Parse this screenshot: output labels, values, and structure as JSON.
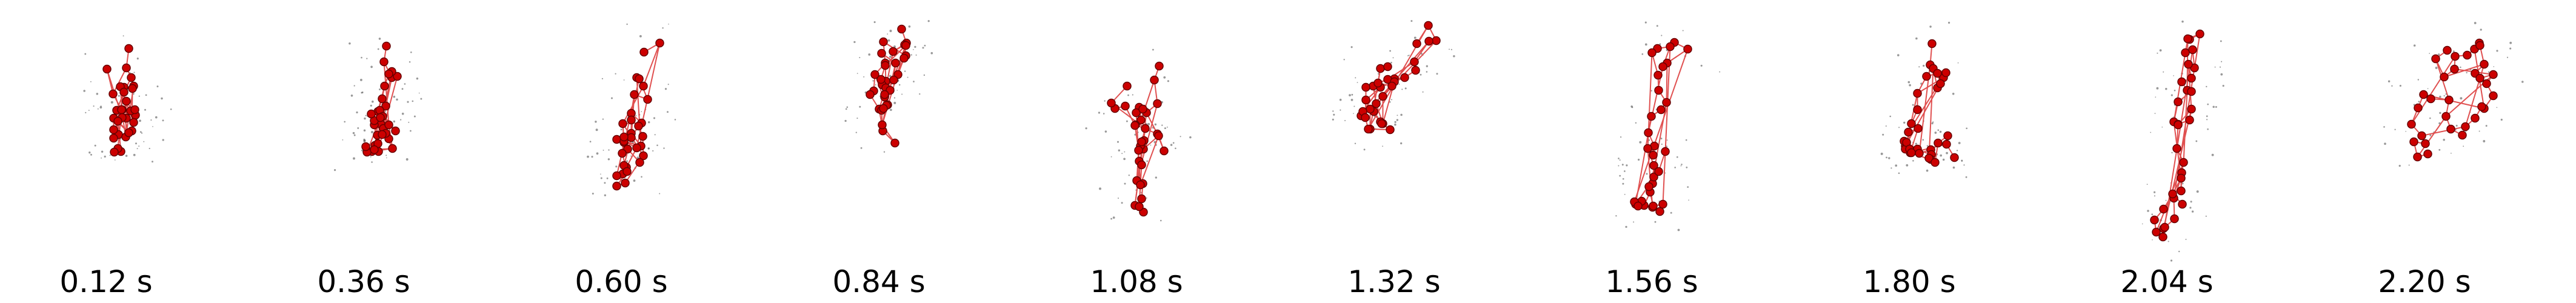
{
  "frames": [
    {
      "label": "0.12 s",
      "pose": [
        [
          0,
          2
        ],
        [
          -4,
          34
        ],
        [
          4,
          50
        ],
        [
          8,
          64
        ],
        [
          6,
          68
        ],
        [
          -8,
          66
        ],
        [
          -14,
          65
        ],
        [
          -11,
          103
        ],
        [
          -4,
          117
        ],
        [
          -8,
          74
        ],
        [
          -20,
          104
        ],
        [
          -17,
          144
        ],
        [
          -5,
          148
        ],
        [
          -4,
          89
        ],
        [
          11,
          112
        ],
        [
          8,
          124
        ],
        [
          3,
          105
        ],
        [
          -25,
          136
        ],
        [
          -25,
          150
        ],
        [
          -25,
          117
        ],
        [
          0,
          141
        ],
        [
          -12,
          103
        ],
        [
          -26,
          77
        ],
        [
          -36,
          36
        ],
        [
          -11,
          116
        ],
        [
          10,
          103
        ],
        [
          5,
          138
        ],
        [
          0,
          141
        ],
        [
          -18,
          122
        ],
        [
          -13,
          172
        ],
        [
          -18,
          167
        ],
        [
          -24,
          173
        ]
      ]
    },
    {
      "label": "0.36 s",
      "pose": [
        [
          0,
          -2
        ],
        [
          -4,
          24
        ],
        [
          9,
          50
        ],
        [
          18,
          48
        ],
        [
          9,
          40
        ],
        [
          4,
          44
        ],
        [
          -3,
          64
        ],
        [
          -7,
          85
        ],
        [
          -14,
          106
        ],
        [
          -1,
          97
        ],
        [
          -9,
          127
        ],
        [
          -15,
          145
        ],
        [
          -5,
          134
        ],
        [
          4,
          151
        ],
        [
          -1,
          142
        ],
        [
          -20,
          128
        ],
        [
          -20,
          121
        ],
        [
          -25,
          110
        ],
        [
          -11,
          104
        ],
        [
          -19,
          162
        ],
        [
          -24,
          172
        ],
        [
          10,
          167
        ],
        [
          4,
          128
        ],
        [
          -7,
          144
        ],
        [
          -13,
          172
        ],
        [
          -14,
          159
        ],
        [
          -6,
          114
        ],
        [
          15,
          138
        ],
        [
          -10,
          116
        ],
        [
          -32,
          173
        ],
        [
          -20,
          169
        ],
        [
          -34,
          164
        ]
      ]
    },
    {
      "label": "0.60 s",
      "pose": [
        [
          0,
          8
        ],
        [
          26,
          -7
        ],
        [
          -1,
          64
        ],
        [
          -12,
          50
        ],
        [
          -8,
          52
        ],
        [
          6,
          86
        ],
        [
          -16,
          78
        ],
        [
          -21,
          109
        ],
        [
          -4,
          125
        ],
        [
          -35,
          126
        ],
        [
          -33,
          157
        ],
        [
          -45,
          152
        ],
        [
          -5,
          163
        ],
        [
          -21,
          142
        ],
        [
          -21,
          120
        ],
        [
          -21,
          149
        ],
        [
          -9,
          130
        ],
        [
          -2,
          147
        ],
        [
          -1,
          179
        ],
        [
          -7,
          190
        ],
        [
          -27,
          168
        ],
        [
          -33,
          155
        ],
        [
          -12,
          166
        ],
        [
          -29,
          198
        ],
        [
          -33,
          195
        ],
        [
          -35,
          209
        ],
        [
          -45,
          212
        ],
        [
          -31,
          224
        ],
        [
          -45,
          229
        ],
        [
          -28,
          205
        ],
        [
          -36,
          175
        ],
        [
          -33,
          148
        ]
      ]
    },
    {
      "label": "0.84 s",
      "pose": [
        [
          0,
          -30
        ],
        [
          8,
          -7
        ],
        [
          -14,
          7
        ],
        [
          5,
          -4
        ],
        [
          7,
          14
        ],
        [
          -30,
          -9
        ],
        [
          -27,
          26
        ],
        [
          -26,
          56
        ],
        [
          -32,
          62
        ],
        [
          -26,
          67
        ],
        [
          -6,
          45
        ],
        [
          4,
          18
        ],
        [
          7,
          -3
        ],
        [
          -27,
          30
        ],
        [
          -34,
          53
        ],
        [
          -44,
          45
        ],
        [
          -46,
          72
        ],
        [
          -52,
          78
        ],
        [
          -37,
          102
        ],
        [
          -31,
          138
        ],
        [
          -11,
          158
        ],
        [
          -32,
          128
        ],
        [
          -33,
          104
        ],
        [
          -23,
          95
        ],
        [
          -25,
          96
        ],
        [
          -19,
          71
        ],
        [
          -28,
          82
        ],
        [
          -30,
          101
        ],
        [
          -28,
          78
        ],
        [
          -13,
          54
        ],
        [
          -10,
          26
        ],
        [
          -33,
          10
        ]
      ]
    },
    {
      "label": "1.08 s",
      "pose": [
        [
          0,
          31
        ],
        [
          -8,
          54
        ],
        [
          -3,
          93
        ],
        [
          -21,
          108
        ],
        [
          -3,
          143
        ],
        [
          8,
          171
        ],
        [
          -1,
          146
        ],
        [
          -26,
          168
        ],
        [
          -33,
          188
        ],
        [
          -37,
          220
        ],
        [
          -27,
          225
        ],
        [
          -29,
          250
        ],
        [
          -40,
          261
        ],
        [
          -26,
          272
        ],
        [
          -33,
          263
        ],
        [
          -31,
          227
        ],
        [
          -29,
          194
        ],
        [
          -31,
          163
        ],
        [
          -34,
          170
        ],
        [
          -25,
          154
        ],
        [
          -29,
          156
        ],
        [
          -23,
          134
        ],
        [
          -30,
          120
        ],
        [
          -33,
          99
        ],
        [
          -38,
          108
        ],
        [
          -27,
          102
        ],
        [
          -39,
          128
        ],
        [
          -40,
          129
        ],
        [
          -56,
          97
        ],
        [
          -73,
          101
        ],
        [
          -79,
          92
        ],
        [
          -53,
          64
        ]
      ]
    },
    {
      "label": "1.32 s",
      "pose": [
        [
          0,
          -6
        ],
        [
          19,
          -36
        ],
        [
          32,
          -11
        ],
        [
          20,
          -10
        ],
        [
          -4,
          24
        ],
        [
          -2,
          38
        ],
        [
          -20,
          50
        ],
        [
          -37,
          52
        ],
        [
          -39,
          58
        ],
        [
          -56,
          81
        ],
        [
          -71,
          106
        ],
        [
          -60,
          123
        ],
        [
          -77,
          102
        ],
        [
          -92,
          113
        ],
        [
          -89,
          106
        ],
        [
          -60,
          66
        ],
        [
          -72,
          64
        ],
        [
          -67,
          93
        ],
        [
          -56,
          126
        ],
        [
          -58,
          126
        ],
        [
          -44,
          136
        ],
        [
          -77,
          135
        ],
        [
          -80,
          135
        ],
        [
          -85,
          116
        ],
        [
          -84,
          87
        ],
        [
          -84,
          66
        ],
        [
          -48,
          53
        ],
        [
          -37,
          57
        ],
        [
          -41,
          64
        ],
        [
          -64,
          59
        ],
        [
          -60,
          35
        ],
        [
          -48,
          32
        ]
      ]
    },
    {
      "label": "1.56 s",
      "pose": [
        [
          0,
          -8
        ],
        [
          22,
          3
        ],
        [
          -12,
          26
        ],
        [
          -19,
          32
        ],
        [
          -7,
          -1
        ],
        [
          -28,
          2
        ],
        [
          -37,
          9
        ],
        [
          -27,
          46
        ],
        [
          -26,
          71
        ],
        [
          -13,
          91
        ],
        [
          -22,
          103
        ],
        [
          -38,
          114
        ],
        [
          -43,
          141
        ],
        [
          -33,
          163
        ],
        [
          -35,
          178
        ],
        [
          -44,
          167
        ],
        [
          -34,
          195
        ],
        [
          -36,
          225
        ],
        [
          -40,
          239
        ],
        [
          -50,
          261
        ],
        [
          -54,
          254
        ],
        [
          -64,
          259
        ],
        [
          -66,
          255
        ],
        [
          -60,
          262
        ],
        [
          -36,
          264
        ],
        [
          -24,
          271
        ],
        [
          -19,
          259
        ],
        [
          -35,
          262
        ],
        [
          -42,
          230
        ],
        [
          -34,
          214
        ],
        [
          -26,
          205
        ],
        [
          -15,
          172
        ]
      ]
    },
    {
      "label": "1.80 s",
      "pose": [
        [
          0,
          -6
        ],
        [
          -3,
          29
        ],
        [
          19,
          50
        ],
        [
          23,
          42
        ],
        [
          2,
          35
        ],
        [
          9,
          67
        ],
        [
          14,
          60
        ],
        [
          9,
          43
        ],
        [
          -9,
          48
        ],
        [
          -24,
          76
        ],
        [
          -24,
          103
        ],
        [
          -34,
          126
        ],
        [
          -39,
          140
        ],
        [
          -23,
          134
        ],
        [
          -36,
          174
        ],
        [
          -44,
          163
        ],
        [
          -24,
          168
        ],
        [
          -46,
          155
        ],
        [
          -44,
          168
        ],
        [
          -42,
          157
        ],
        [
          -37,
          168
        ],
        [
          -34,
          174
        ],
        [
          -21,
          175
        ],
        [
          -2,
          169
        ],
        [
          -1,
          177
        ],
        [
          -2,
          185
        ],
        [
          -5,
          183
        ],
        [
          5,
          190
        ],
        [
          10,
          158
        ],
        [
          26,
          146
        ],
        [
          24,
          160
        ],
        [
          37,
          182
        ]
      ]
    },
    {
      "label": "2.04 s",
      "pose": [
        [
          0,
          -13
        ],
        [
          17,
          -22
        ],
        [
          -3,
          -14
        ],
        [
          -7,
          9
        ],
        [
          5,
          4
        ],
        [
          8,
          34
        ],
        [
          -2,
          28
        ],
        [
          3,
          51
        ],
        [
          -13,
          57
        ],
        [
          -4,
          71
        ],
        [
          3,
          73
        ],
        [
          -19,
          90
        ],
        [
          -26,
          123
        ],
        [
          -19,
          127
        ],
        [
          0,
          120
        ],
        [
          3,
          102
        ],
        [
          -19,
          128
        ],
        [
          -21,
          167
        ],
        [
          -10,
          190
        ],
        [
          -13,
          207
        ],
        [
          -14,
          237
        ],
        [
          -14,
          216
        ],
        [
          -26,
          249
        ],
        [
          -25,
          283
        ],
        [
          -43,
          299
        ],
        [
          -41,
          297
        ],
        [
          -44,
          313
        ],
        [
          -55,
          305
        ],
        [
          -58,
          285
        ],
        [
          -43,
          267
        ],
        [
          -28,
          242
        ],
        [
          -12,
          259
        ]
      ]
    },
    {
      "label": "2.20 s",
      "pose": [
        [
          0,
          5
        ],
        [
          -19,
          19
        ],
        [
          -5,
          49
        ],
        [
          12,
          36
        ],
        [
          13,
          15
        ],
        [
          33,
          13
        ],
        [
          45,
          3
        ],
        [
          53,
          -7
        ],
        [
          54,
          -3
        ],
        [
          61,
          28
        ],
        [
          46,
          43
        ],
        [
          54,
          51
        ],
        [
          76,
          45
        ],
        [
          65,
          60
        ],
        [
          76,
          80
        ],
        [
          61,
          101
        ],
        [
          57,
          98
        ],
        [
          46,
          117
        ],
        [
          30,
          131
        ],
        [
          25,
          145
        ],
        [
          6,
          135
        ],
        [
          -2,
          114
        ],
        [
          3,
          87
        ],
        [
          -27,
          85
        ],
        [
          -39,
          78
        ],
        [
          -48,
          100
        ],
        [
          -59,
          127
        ],
        [
          -42,
          146
        ],
        [
          -36,
          159
        ],
        [
          -55,
          156
        ],
        [
          -49,
          181
        ],
        [
          -32,
          176
        ]
      ]
    }
  ],
  "colors": {
    "joint": "#cc0000",
    "joint_outline": "#660000",
    "bone": "#e05050",
    "noise": "#555555"
  }
}
